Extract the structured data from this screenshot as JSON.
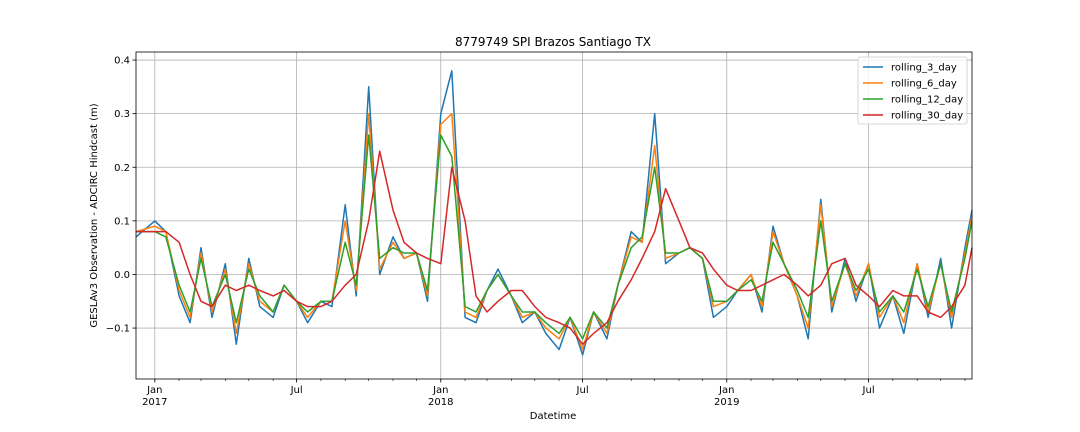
{
  "chart_data": {
    "type": "line",
    "title": "8779749 SPI Brazos Santiago TX",
    "xlabel": "Datetime",
    "ylabel": "GESLAv3 Observation - ADCIRC Hindcast (m)",
    "ylim": [
      -0.195,
      0.415
    ],
    "xlim": [
      "2016-12-08",
      "2019-11-10"
    ],
    "grid": true,
    "legend_position": "upper-right",
    "y_ticks": [
      -0.1,
      0.0,
      0.1,
      0.2,
      0.3,
      0.4
    ],
    "y_tick_labels": [
      "−0.1",
      "0.0",
      "0.1",
      "0.2",
      "0.3",
      "0.4"
    ],
    "x_ticks": [
      {
        "date": "2017-01-01",
        "label": "Jan",
        "sublabel": "2017"
      },
      {
        "date": "2017-07-01",
        "label": "Jul",
        "sublabel": ""
      },
      {
        "date": "2018-01-01",
        "label": "Jan",
        "sublabel": "2018"
      },
      {
        "date": "2018-07-01",
        "label": "Jul",
        "sublabel": ""
      },
      {
        "date": "2019-01-01",
        "label": "Jan",
        "sublabel": "2019"
      },
      {
        "date": "2019-07-01",
        "label": "Jul",
        "sublabel": ""
      }
    ],
    "x": [
      "2016-12-08",
      "2017-01-01",
      "2017-01-15",
      "2017-02-01",
      "2017-02-15",
      "2017-03-01",
      "2017-03-15",
      "2017-04-01",
      "2017-04-15",
      "2017-05-01",
      "2017-05-15",
      "2017-06-01",
      "2017-06-15",
      "2017-07-01",
      "2017-07-15",
      "2017-08-01",
      "2017-08-15",
      "2017-09-01",
      "2017-09-15",
      "2017-10-01",
      "2017-10-15",
      "2017-11-01",
      "2017-11-15",
      "2017-12-01",
      "2017-12-15",
      "2018-01-01",
      "2018-01-15",
      "2018-02-01",
      "2018-02-15",
      "2018-03-01",
      "2018-03-15",
      "2018-04-01",
      "2018-04-15",
      "2018-05-01",
      "2018-05-15",
      "2018-06-01",
      "2018-06-15",
      "2018-07-01",
      "2018-07-15",
      "2018-08-01",
      "2018-08-15",
      "2018-09-01",
      "2018-09-15",
      "2018-10-01",
      "2018-10-15",
      "2018-11-01",
      "2018-11-15",
      "2018-12-01",
      "2018-12-15",
      "2019-01-01",
      "2019-01-15",
      "2019-02-01",
      "2019-02-15",
      "2019-03-01",
      "2019-03-15",
      "2019-04-01",
      "2019-04-15",
      "2019-05-01",
      "2019-05-15",
      "2019-06-01",
      "2019-06-15",
      "2019-07-01",
      "2019-07-15",
      "2019-08-01",
      "2019-08-15",
      "2019-09-01",
      "2019-09-15",
      "2019-10-01",
      "2019-10-15",
      "2019-11-01",
      "2019-11-10"
    ],
    "series": [
      {
        "name": "rolling_3_day",
        "color": "#1f77b4",
        "values": [
          0.07,
          0.1,
          0.08,
          -0.04,
          -0.09,
          0.05,
          -0.08,
          0.02,
          -0.13,
          0.03,
          -0.06,
          -0.08,
          -0.02,
          -0.05,
          -0.09,
          -0.05,
          -0.06,
          0.13,
          -0.04,
          0.35,
          0.0,
          0.07,
          0.03,
          0.04,
          -0.05,
          0.3,
          0.38,
          -0.08,
          -0.09,
          -0.03,
          0.01,
          -0.04,
          -0.09,
          -0.07,
          -0.11,
          -0.14,
          -0.08,
          -0.15,
          -0.07,
          -0.12,
          -0.02,
          0.08,
          0.06,
          0.3,
          0.02,
          0.04,
          0.05,
          0.03,
          -0.08,
          -0.06,
          -0.03,
          0.0,
          -0.07,
          0.09,
          0.02,
          -0.04,
          -0.12,
          0.14,
          -0.07,
          0.03,
          -0.05,
          0.02,
          -0.1,
          -0.04,
          -0.11,
          0.02,
          -0.08,
          0.03,
          -0.1,
          0.05,
          0.12
        ]
      },
      {
        "name": "rolling_6_day",
        "color": "#ff7f0e",
        "values": [
          0.08,
          0.09,
          0.08,
          -0.03,
          -0.08,
          0.04,
          -0.07,
          0.01,
          -0.11,
          0.02,
          -0.05,
          -0.07,
          -0.02,
          -0.05,
          -0.08,
          -0.05,
          -0.05,
          0.1,
          -0.03,
          0.3,
          0.01,
          0.06,
          0.03,
          0.04,
          -0.04,
          0.28,
          0.3,
          -0.07,
          -0.08,
          -0.03,
          0.0,
          -0.04,
          -0.08,
          -0.07,
          -0.1,
          -0.12,
          -0.08,
          -0.14,
          -0.07,
          -0.11,
          -0.02,
          0.07,
          0.06,
          0.24,
          0.03,
          0.04,
          0.05,
          0.03,
          -0.06,
          -0.05,
          -0.03,
          0.0,
          -0.06,
          0.08,
          0.02,
          -0.04,
          -0.1,
          0.13,
          -0.06,
          0.02,
          -0.04,
          0.02,
          -0.08,
          -0.04,
          -0.09,
          0.02,
          -0.07,
          0.02,
          -0.08,
          0.04,
          0.11
        ]
      },
      {
        "name": "rolling_12_day",
        "color": "#2ca02c",
        "values": [
          0.08,
          0.08,
          0.07,
          -0.02,
          -0.07,
          0.03,
          -0.06,
          0.0,
          -0.09,
          0.01,
          -0.04,
          -0.07,
          -0.02,
          -0.05,
          -0.07,
          -0.05,
          -0.05,
          0.06,
          -0.02,
          0.26,
          0.03,
          0.05,
          0.04,
          0.04,
          -0.03,
          0.26,
          0.22,
          -0.06,
          -0.07,
          -0.03,
          0.0,
          -0.04,
          -0.07,
          -0.07,
          -0.09,
          -0.11,
          -0.08,
          -0.12,
          -0.07,
          -0.1,
          -0.02,
          0.05,
          0.07,
          0.2,
          0.04,
          0.04,
          0.05,
          0.03,
          -0.05,
          -0.05,
          -0.03,
          -0.01,
          -0.05,
          0.06,
          0.02,
          -0.03,
          -0.08,
          0.1,
          -0.05,
          0.02,
          -0.03,
          0.01,
          -0.07,
          -0.04,
          -0.07,
          0.01,
          -0.06,
          0.02,
          -0.07,
          0.03,
          0.1
        ]
      },
      {
        "name": "rolling_30_day",
        "color": "#d62728",
        "values": [
          0.08,
          0.08,
          0.08,
          0.06,
          0.0,
          -0.05,
          -0.06,
          -0.02,
          -0.03,
          -0.02,
          -0.03,
          -0.04,
          -0.03,
          -0.05,
          -0.06,
          -0.06,
          -0.05,
          -0.02,
          0.0,
          0.1,
          0.23,
          0.12,
          0.06,
          0.04,
          0.03,
          0.02,
          0.2,
          0.1,
          -0.04,
          -0.07,
          -0.05,
          -0.03,
          -0.03,
          -0.06,
          -0.08,
          -0.09,
          -0.1,
          -0.13,
          -0.11,
          -0.09,
          -0.05,
          -0.01,
          0.03,
          0.08,
          0.16,
          0.1,
          0.05,
          0.04,
          0.01,
          -0.02,
          -0.03,
          -0.03,
          -0.02,
          -0.01,
          0.0,
          -0.02,
          -0.04,
          -0.02,
          0.02,
          0.03,
          -0.02,
          -0.04,
          -0.06,
          -0.03,
          -0.04,
          -0.04,
          -0.07,
          -0.08,
          -0.06,
          -0.02,
          0.05
        ]
      }
    ]
  }
}
